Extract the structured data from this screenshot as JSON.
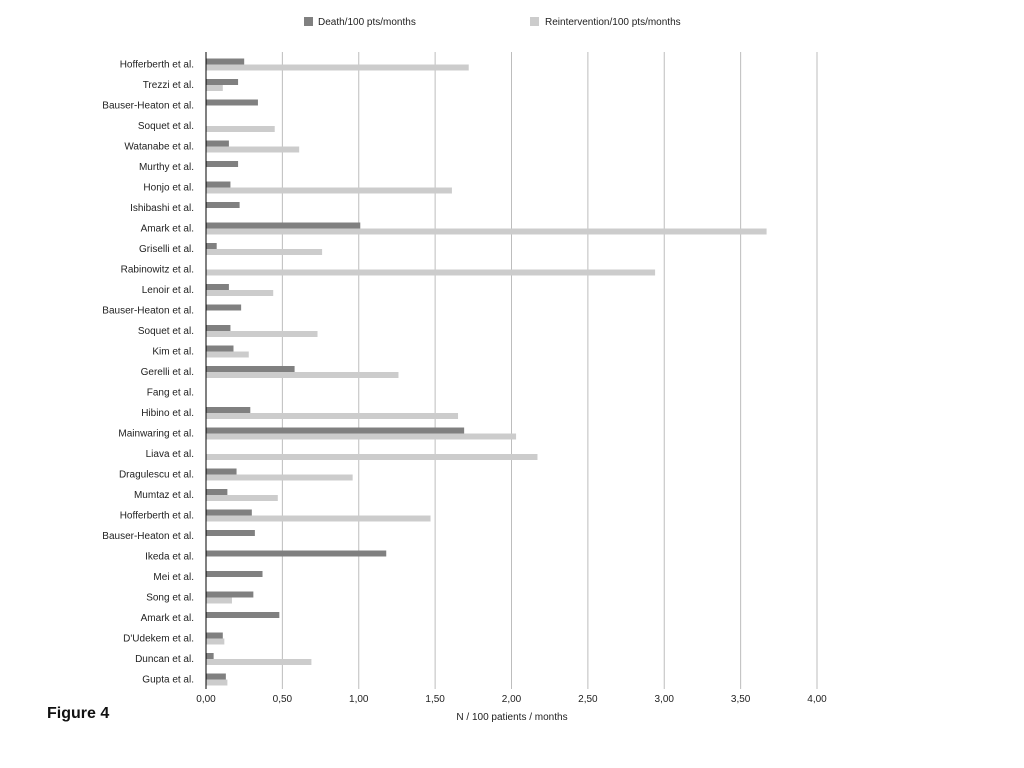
{
  "figure_label": "Figure 4",
  "chart_data": {
    "type": "bar",
    "orientation": "horizontal",
    "xlabel": "N / 100 patients / months",
    "xlim": [
      0,
      4
    ],
    "x_ticks": [
      "0,00",
      "0,50",
      "1,00",
      "1,50",
      "2,00",
      "2,50",
      "3,00",
      "3,50",
      "4,00"
    ],
    "grid": true,
    "legend_position": "top",
    "categories": [
      "Hofferberth et al.",
      "Trezzi et al.",
      "Bauser-Heaton et al.",
      "Soquet et al.",
      "Watanabe et al.",
      "Murthy et al.",
      "Honjo et al.",
      "Ishibashi et al.",
      "Amark et al.",
      "Griselli et al.",
      "Rabinowitz et al.",
      "Lenoir et al.",
      "Bauser-Heaton et al.",
      "Soquet et al.",
      "Kim et al.",
      "Gerelli et al.",
      "Fang et al.",
      "Hibino et al.",
      "Mainwaring et al.",
      "Liava et al.",
      "Dragulescu et al.",
      "Mumtaz et al.",
      "Hofferberth et al.",
      "Bauser-Heaton et al.",
      "Ikeda et al.",
      "Mei et al.",
      "Song et al.",
      "Amark et al.",
      "D'Udekem et al.",
      "Duncan et al.",
      "Gupta et al."
    ],
    "series": [
      {
        "name": "Death/100 pts/months",
        "color": "#808080",
        "values": [
          0.25,
          0.21,
          0.34,
          0,
          0.15,
          0.21,
          0.16,
          0.22,
          1.01,
          0.07,
          0,
          0.15,
          0.23,
          0.16,
          0.18,
          0.58,
          0,
          0.29,
          1.69,
          0,
          0.2,
          0.14,
          0.3,
          0.32,
          1.18,
          0.37,
          0.31,
          0.48,
          0.11,
          0.05,
          0.13
        ]
      },
      {
        "name": "Reintervention/100 pts/months",
        "color": "#cccccc",
        "values": [
          1.72,
          0.11,
          0,
          0.45,
          0.61,
          0,
          1.61,
          0,
          3.67,
          0.76,
          2.94,
          0.44,
          0,
          0.73,
          0.28,
          1.26,
          0,
          1.65,
          2.03,
          2.17,
          0.96,
          0.47,
          1.47,
          0,
          0,
          0,
          0.17,
          0,
          0.12,
          0.69,
          0.14
        ]
      }
    ]
  }
}
